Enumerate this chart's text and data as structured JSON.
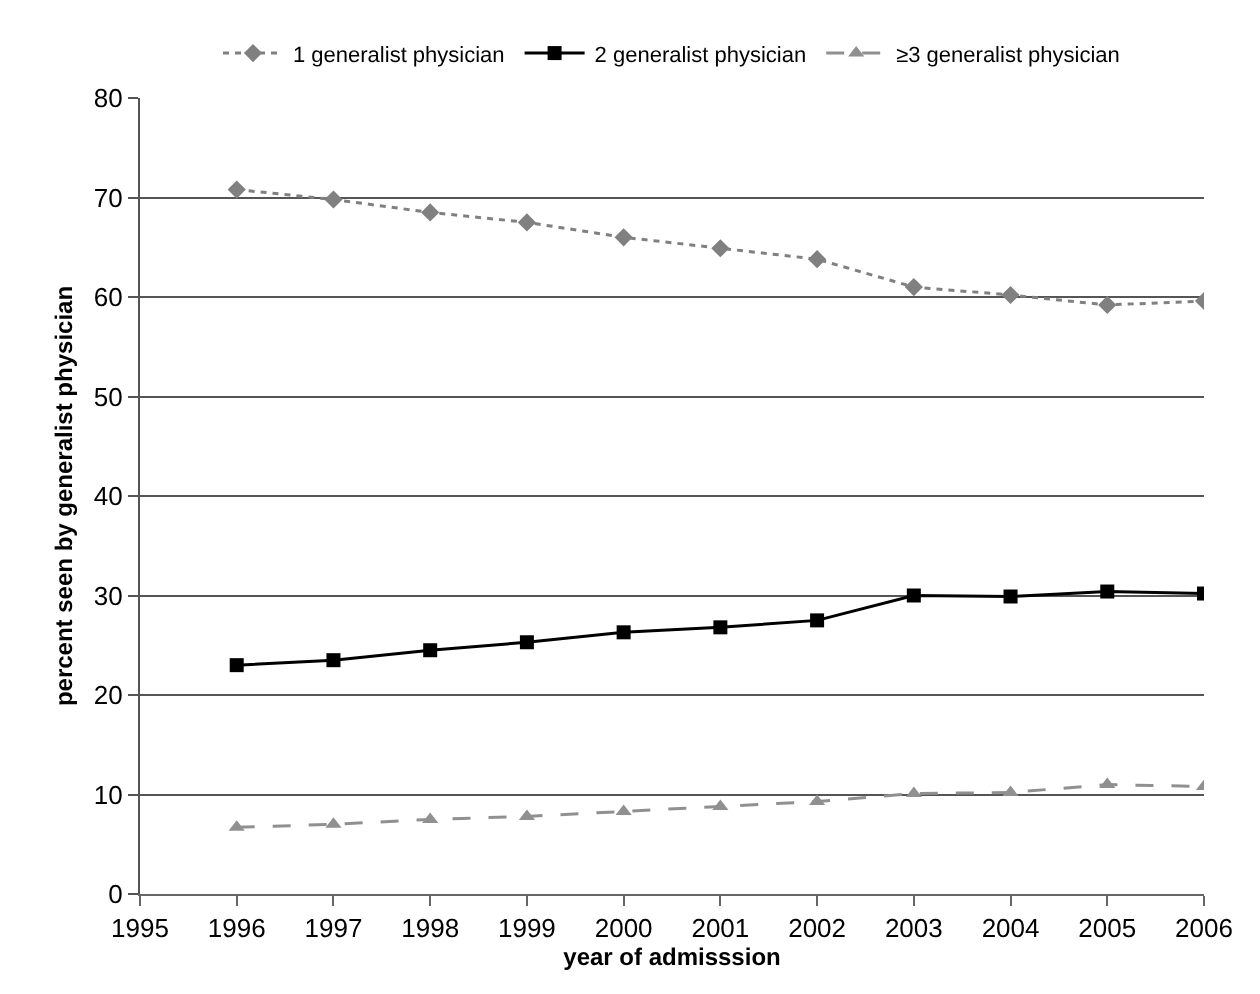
{
  "chart_data": {
    "type": "line",
    "xlabel": "year of admisssion",
    "ylabel": "percent seen by generalist physician",
    "x": [
      1996,
      1997,
      1998,
      1999,
      2000,
      2001,
      2002,
      2003,
      2004,
      2005,
      2006
    ],
    "xlim": [
      1995,
      2006
    ],
    "xticks": [
      1995,
      1996,
      1997,
      1998,
      1999,
      2000,
      2001,
      2002,
      2003,
      2004,
      2005,
      2006
    ],
    "ylim": [
      0,
      80
    ],
    "yticks": [
      0,
      10,
      20,
      30,
      40,
      50,
      60,
      70,
      80
    ],
    "grid": "y",
    "legend": "top",
    "series": [
      {
        "name": "1 generalist physician",
        "color": "#808080",
        "marker": "diamond",
        "line_style": "dotted",
        "values": [
          70.8,
          69.8,
          68.5,
          67.5,
          66,
          64.9,
          63.8,
          61,
          60.2,
          59.2,
          59.6
        ]
      },
      {
        "name": "2 generalist physician",
        "color": "#000000",
        "marker": "square",
        "line_style": "solid",
        "values": [
          23,
          23.5,
          24.5,
          25.3,
          26.3,
          26.8,
          27.5,
          30,
          29.9,
          30.4,
          30.2
        ]
      },
      {
        "name": "≥3 generalist physician",
        "color": "#909090",
        "marker": "triangle",
        "line_style": "dashed",
        "values": [
          6.7,
          7,
          7.5,
          7.8,
          8.3,
          8.8,
          9.3,
          10.1,
          10.2,
          11,
          10.8
        ]
      }
    ]
  }
}
